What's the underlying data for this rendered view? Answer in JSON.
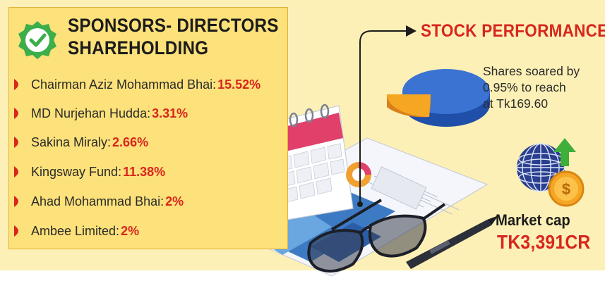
{
  "sponsors": {
    "title_line1": "SPONSORS- DIRECTORS",
    "title_line2": "SHAREHOLDING",
    "items": [
      {
        "name": "Chairman Aziz Mohammad Bhai:",
        "value": "15.52%"
      },
      {
        "name": "MD Nurjehan Hudda:",
        "value": "3.31%"
      },
      {
        "name": "Sakina Miraly:",
        "value": "2.66%"
      },
      {
        "name": "Kingsway Fund:",
        "value": "11.38%"
      },
      {
        "name": "Ahad Mohammad Bhai:",
        "value": "2%"
      },
      {
        "name": "Ambee Limited:",
        "value": "2%"
      }
    ]
  },
  "stock": {
    "title": "STOCK PERFORMANCE",
    "text_line1": "Shares soared by",
    "text_line2": "0.95% to reach",
    "text_line3": "at Tk169.60"
  },
  "market_cap": {
    "label": "Market cap",
    "value": "TK3,391CR"
  },
  "icons": {
    "badge": "verified-check-badge-icon",
    "bullet": "red-bullet-icon",
    "pie": "pie-chart-icon",
    "globe": "globe-dollar-icon",
    "calendar": "calendar-illustration",
    "glasses": "eyeglasses-illustration",
    "pen": "pen-illustration"
  },
  "colors": {
    "accent_red": "#d7261e",
    "panel_yellow": "#fde17a",
    "background": "#fdf0b6"
  }
}
